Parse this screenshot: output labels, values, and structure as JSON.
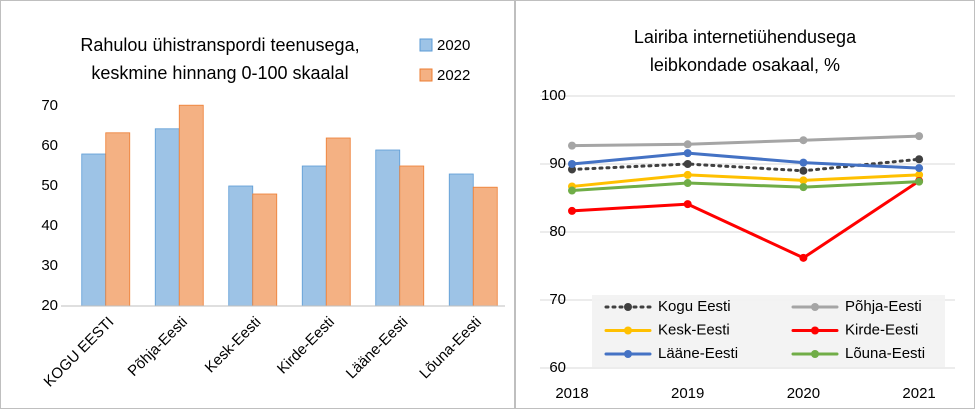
{
  "chart_data": [
    {
      "type": "bar",
      "title": [
        "Rahulou ühistranspordi teenusega,",
        "keskmine hinnang 0-100 skaalal"
      ],
      "categories": [
        "KOGU EESTI",
        "Põhja-Eesti",
        "Kesk-Eesti",
        "Kirde-Eesti",
        "Lääne-Eesti",
        "Lõuna-Eesti"
      ],
      "series": [
        {
          "name": "2020",
          "color": "#9dc3e6",
          "values": [
            58,
            64.3,
            50,
            55,
            59,
            53
          ]
        },
        {
          "name": "2022",
          "color": "#f4b183",
          "values": [
            63.3,
            70.2,
            48,
            62,
            55,
            49.7
          ]
        }
      ],
      "ylim": [
        20,
        75
      ],
      "yticks": [
        20,
        30,
        40,
        50,
        60,
        70
      ],
      "grid": false,
      "legend": "top-right"
    },
    {
      "type": "line",
      "title": [
        "Lairiba internetiühendusega",
        "leibkondade osakaal, %"
      ],
      "categories": [
        "2018",
        "2019",
        "2020",
        "2021"
      ],
      "series": [
        {
          "name": "Kogu Eesti",
          "color": "#404040",
          "dash": "dotted",
          "values": [
            89.2,
            90,
            89,
            90.7
          ]
        },
        {
          "name": "Põhja-Eesti",
          "color": "#a5a5a5",
          "values": [
            92.7,
            92.9,
            93.5,
            94.1
          ]
        },
        {
          "name": "Kesk-Eesti",
          "color": "#ffc000",
          "values": [
            86.7,
            88.4,
            87.6,
            88.4
          ]
        },
        {
          "name": "Kirde-Eesti",
          "color": "#ff0000",
          "values": [
            83.1,
            84.1,
            76.2,
            87.5
          ]
        },
        {
          "name": "Lääne-Eesti",
          "color": "#4472c4",
          "values": [
            90,
            91.6,
            90.2,
            89.4
          ]
        },
        {
          "name": "Lõuna-Eesti",
          "color": "#70ad47",
          "values": [
            86.1,
            87.2,
            86.6,
            87.4
          ]
        }
      ],
      "ylim": [
        60,
        100
      ],
      "yticks": [
        60,
        70,
        80,
        90,
        100
      ],
      "grid": true,
      "legend": "bottom"
    }
  ]
}
